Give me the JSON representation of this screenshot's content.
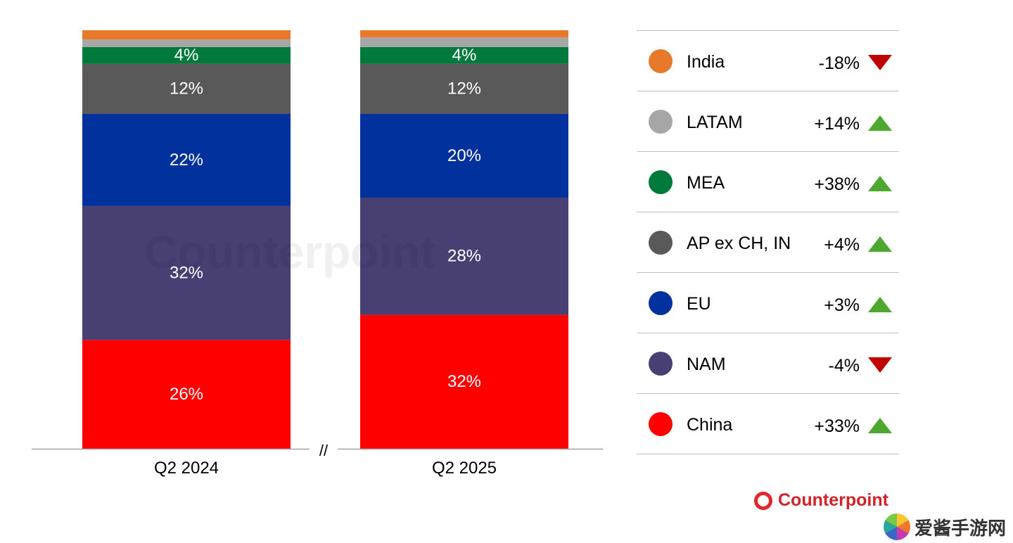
{
  "chart_data": {
    "type": "bar",
    "stacked": true,
    "percent": true,
    "categories": [
      "Q2 2024",
      "Q2 2025"
    ],
    "series": [
      {
        "name": "China",
        "color": "#ff0000",
        "values": [
          26,
          32
        ],
        "labels": [
          "26%",
          "32%"
        ]
      },
      {
        "name": "NAM",
        "color": "#483f73",
        "values": [
          32,
          28
        ],
        "labels": [
          "32%",
          "28%"
        ]
      },
      {
        "name": "EU",
        "color": "#00319c",
        "values": [
          22,
          20
        ],
        "labels": [
          "22%",
          "20%"
        ]
      },
      {
        "name": "AP ex CH, IN",
        "color": "#595959",
        "values": [
          12,
          12
        ],
        "labels": [
          "12%",
          "12%"
        ]
      },
      {
        "name": "MEA",
        "color": "#00793d",
        "values": [
          4,
          4
        ],
        "labels": [
          "4%",
          "4%"
        ]
      },
      {
        "name": "LATAM",
        "color": "#a6a6a6",
        "values": [
          1.8,
          2.3
        ],
        "labels": [
          "",
          ""
        ]
      },
      {
        "name": "India",
        "color": "#e8782a",
        "values": [
          2.2,
          1.7
        ],
        "labels": [
          "",
          ""
        ]
      }
    ],
    "axis_break": "//",
    "ylim": [
      0,
      100
    ]
  },
  "legend": [
    {
      "name": "India",
      "color": "#e8782a",
      "change": "-18%",
      "direction": "down"
    },
    {
      "name": "LATAM",
      "color": "#a6a6a6",
      "change": "+14%",
      "direction": "up"
    },
    {
      "name": "MEA",
      "color": "#00793d",
      "change": "+38%",
      "direction": "up"
    },
    {
      "name": "AP ex CH, IN",
      "color": "#595959",
      "change": "+4%",
      "direction": "up"
    },
    {
      "name": "EU",
      "color": "#00319c",
      "change": "+3%",
      "direction": "up"
    },
    {
      "name": "NAM",
      "color": "#483f73",
      "change": "-4%",
      "direction": "down"
    },
    {
      "name": "China",
      "color": "#ff0000",
      "change": "+33%",
      "direction": "up"
    }
  ],
  "watermark": "Counterpoint",
  "logo": "Counterpoint",
  "site_watermark": "爱酱手游网"
}
